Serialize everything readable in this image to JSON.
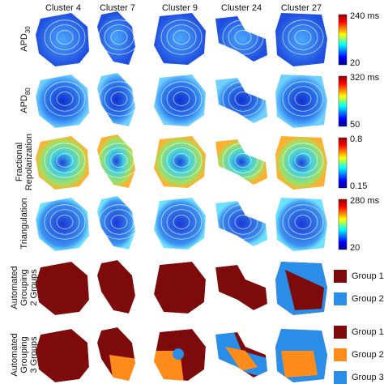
{
  "columns": [
    "Cluster 4",
    "Cluster 7",
    "Cluster 9",
    "Cluster 24",
    "Cluster 27"
  ],
  "rows": [
    {
      "label": [
        "APD"
      ],
      "subscript": "30",
      "colorbar": {
        "max": "240 ms",
        "min": "20"
      }
    },
    {
      "label": [
        "APD"
      ],
      "subscript": "80",
      "colorbar": {
        "max": "320 ms",
        "min": "50"
      }
    },
    {
      "label": [
        "Fractional",
        "Repolarization"
      ],
      "colorbar": {
        "max": "0.8",
        "min": "0.15"
      }
    },
    {
      "label": [
        "Triangulation"
      ],
      "colorbar": {
        "max": "280 ms",
        "min": "20"
      }
    },
    {
      "label": [
        "Automated",
        "Grouping",
        "2 Groups"
      ],
      "legend": [
        "Group 1",
        "Group 2"
      ]
    },
    {
      "label": [
        "Automated",
        "Grouping",
        "3 Groups"
      ],
      "legend": [
        "Group 1",
        "Group 2",
        "Group 3"
      ]
    }
  ]
}
